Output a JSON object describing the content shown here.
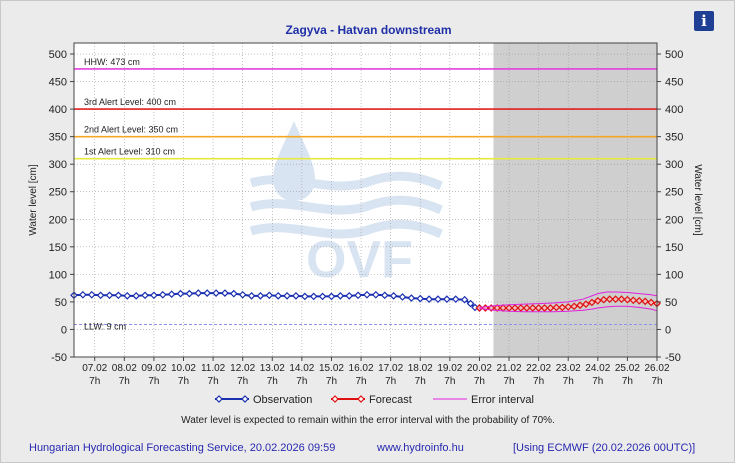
{
  "page": {
    "title": "Zagyva - Hatvan downstream",
    "footer_left": "Hungarian Hydrological Forecasting Service, 20.02.2026 09:59",
    "footer_mid": "www.hydroinfo.hu",
    "footer_right": "[Using ECMWF (20.02.2026  00UTC)]",
    "note": "Water level is expected to remain within the error interval with the probability of 70%.",
    "info_icon": "info-icon",
    "info_glyph": "i"
  },
  "chart_data": {
    "type": "line",
    "title": "Zagyva - Hatvan downstream",
    "ylabel": "Water level [cm]",
    "y2label": "Water level [cm]",
    "ylim": [
      -50,
      520
    ],
    "yticks": [
      -50,
      0,
      50,
      100,
      150,
      200,
      250,
      300,
      350,
      400,
      450,
      500
    ],
    "xlim": [
      6.3,
      26.0
    ],
    "x_ticks": [
      {
        "x": 7,
        "date": "07.02",
        "hour": "7h"
      },
      {
        "x": 8,
        "date": "08.02",
        "hour": "7h"
      },
      {
        "x": 9,
        "date": "09.02",
        "hour": "7h"
      },
      {
        "x": 10,
        "date": "10.02",
        "hour": "7h"
      },
      {
        "x": 11,
        "date": "11.02",
        "hour": "7h"
      },
      {
        "x": 12,
        "date": "12.02",
        "hour": "7h"
      },
      {
        "x": 13,
        "date": "13.02",
        "hour": "7h"
      },
      {
        "x": 14,
        "date": "14.02",
        "hour": "7h"
      },
      {
        "x": 15,
        "date": "15.02",
        "hour": "7h"
      },
      {
        "x": 16,
        "date": "16.02",
        "hour": "7h"
      },
      {
        "x": 17,
        "date": "17.02",
        "hour": "7h"
      },
      {
        "x": 18,
        "date": "18.02",
        "hour": "7h"
      },
      {
        "x": 19,
        "date": "19.02",
        "hour": "7h"
      },
      {
        "x": 20,
        "date": "20.02",
        "hour": "7h"
      },
      {
        "x": 21,
        "date": "21.02",
        "hour": "7h"
      },
      {
        "x": 22,
        "date": "22.02",
        "hour": "7h"
      },
      {
        "x": 23,
        "date": "23.02",
        "hour": "7h"
      },
      {
        "x": 24,
        "date": "24.02",
        "hour": "7h"
      },
      {
        "x": 25,
        "date": "25.02",
        "hour": "7h"
      },
      {
        "x": 26,
        "date": "26.02",
        "hour": "7h"
      }
    ],
    "forecast_start_x": 20.0,
    "levels": [
      {
        "label": "HHW: 473 cm",
        "value": 473,
        "color": "#e040e0"
      },
      {
        "label": "3rd Alert Level: 400 cm",
        "value": 400,
        "color": "#e02020"
      },
      {
        "label": "2nd Alert Level: 350 cm",
        "value": 350,
        "color": "#f5a623"
      },
      {
        "label": "1st Alert Level: 310 cm",
        "value": 310,
        "color": "#e8e840"
      },
      {
        "label": "LLW: 9 cm",
        "value": 9,
        "color": "#9090e8"
      }
    ],
    "legend": [
      {
        "key": "observation",
        "label": "Observation",
        "color": "#1a2fb0"
      },
      {
        "key": "forecast",
        "label": "Forecast",
        "color": "#e01010"
      },
      {
        "key": "error",
        "label": "Error interval",
        "color": "#e020e0"
      }
    ],
    "series": [
      {
        "name": "Observation",
        "color": "#1a2fb0",
        "x": [
          6.3,
          6.6,
          6.9,
          7.2,
          7.5,
          7.8,
          8.1,
          8.4,
          8.7,
          9.0,
          9.3,
          9.6,
          9.9,
          10.2,
          10.5,
          10.8,
          11.1,
          11.4,
          11.7,
          12.0,
          12.3,
          12.6,
          12.9,
          13.2,
          13.5,
          13.8,
          14.1,
          14.4,
          14.7,
          15.0,
          15.3,
          15.6,
          15.9,
          16.2,
          16.5,
          16.8,
          17.1,
          17.4,
          17.7,
          18.0,
          18.3,
          18.6,
          18.9,
          19.2,
          19.5,
          19.7,
          19.85,
          20.0
        ],
        "y": [
          62,
          63,
          63,
          62,
          62,
          62,
          61,
          61,
          62,
          62,
          63,
          64,
          65,
          65,
          66,
          66,
          66,
          66,
          65,
          63,
          61,
          61,
          62,
          61,
          61,
          61,
          60,
          60,
          60,
          60,
          61,
          61,
          62,
          63,
          63,
          62,
          61,
          59,
          57,
          56,
          55,
          55,
          55,
          55,
          54,
          47,
          40,
          39
        ]
      },
      {
        "name": "Forecast",
        "color": "#e01010",
        "x": [
          20.0,
          20.2,
          20.4,
          20.6,
          20.8,
          21.0,
          21.2,
          21.4,
          21.6,
          21.8,
          22.0,
          22.2,
          22.4,
          22.6,
          22.8,
          23.0,
          23.2,
          23.4,
          23.6,
          23.8,
          24.0,
          24.2,
          24.4,
          24.6,
          24.8,
          25.0,
          25.2,
          25.4,
          25.6,
          25.8,
          26.0
        ],
        "y": [
          39,
          39,
          39,
          39,
          39,
          39,
          39,
          39,
          39,
          39,
          39,
          39,
          39,
          40,
          40,
          41,
          42,
          44,
          46,
          49,
          52,
          54,
          55,
          55,
          55,
          54,
          53,
          52,
          51,
          49,
          47
        ]
      },
      {
        "name": "Error interval upper",
        "color": "#e020e0",
        "x": [
          20.0,
          20.5,
          21.0,
          21.5,
          22.0,
          22.5,
          23.0,
          23.5,
          23.8,
          24.0,
          24.3,
          24.6,
          25.0,
          25.4,
          25.8,
          26.0
        ],
        "y": [
          40,
          43,
          45,
          46,
          47,
          48,
          50,
          55,
          61,
          65,
          68,
          68,
          67,
          65,
          63,
          61
        ]
      },
      {
        "name": "Error interval lower",
        "color": "#e020e0",
        "x": [
          20.0,
          20.5,
          21.0,
          21.5,
          22.0,
          22.5,
          23.0,
          23.5,
          23.8,
          24.0,
          24.3,
          24.6,
          25.0,
          25.4,
          25.8,
          26.0
        ],
        "y": [
          38,
          35,
          33,
          32,
          32,
          32,
          33,
          35,
          37,
          39,
          41,
          42,
          42,
          40,
          37,
          34
        ]
      }
    ]
  }
}
